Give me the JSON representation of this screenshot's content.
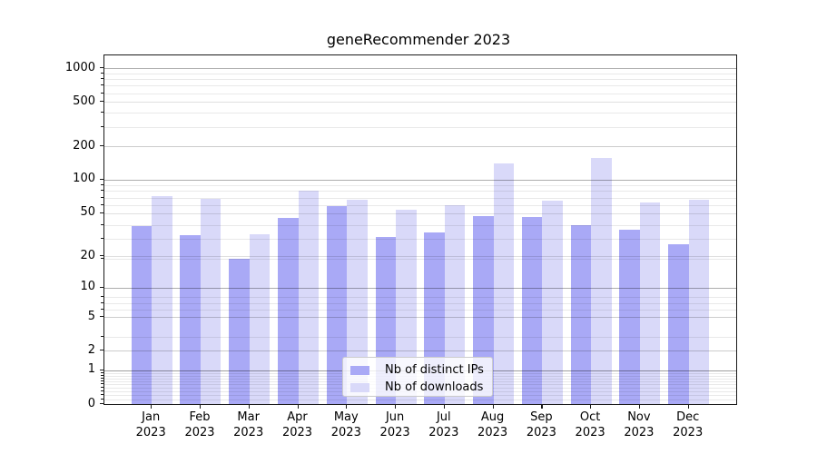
{
  "chart_data": {
    "type": "bar",
    "title": "geneRecommender 2023",
    "categories": [
      "Jan 2023",
      "Feb 2023",
      "Mar 2023",
      "Apr 2023",
      "May 2023",
      "Jun 2023",
      "Jul 2023",
      "Aug 2023",
      "Sep 2023",
      "Oct 2023",
      "Nov 2023",
      "Dec 2023"
    ],
    "series": [
      {
        "name": "Nb of distinct IPs",
        "color": "#a9a9f6",
        "values": [
          38,
          31,
          19,
          45,
          58,
          30,
          33,
          47,
          46,
          39,
          35,
          26
        ]
      },
      {
        "name": "Nb of downloads",
        "color": "#d9d9f9",
        "values": [
          71,
          67,
          32,
          80,
          66,
          53,
          59,
          140,
          65,
          156,
          62,
          66
        ]
      }
    ],
    "yscale": "log10(1+x)",
    "ylim": [
      0,
      1300
    ],
    "yticks": [
      0,
      1,
      2,
      5,
      10,
      20,
      50,
      100,
      200,
      500,
      1000
    ],
    "major_grid_values": [
      1,
      10,
      100,
      1000
    ],
    "labeled_sub_grid_values": [
      2,
      5,
      20,
      50,
      200,
      500
    ],
    "grid": true,
    "legend_position": "lower center",
    "xlabel": "",
    "ylabel": ""
  },
  "colors": {
    "background": "#ffffff",
    "spine": "#1a1a1a",
    "text": "#000000"
  }
}
